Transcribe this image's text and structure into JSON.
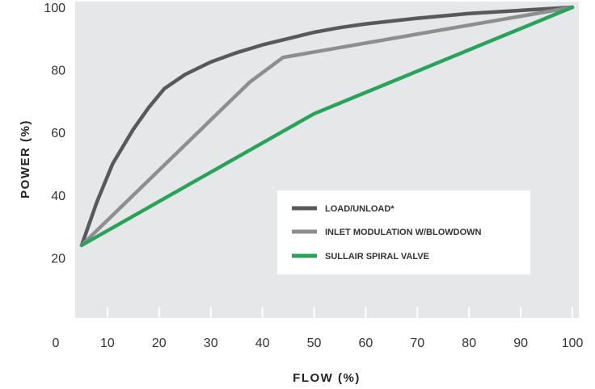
{
  "chart_data": {
    "type": "line",
    "xlabel": "FLOW (%)",
    "ylabel": "POWER (%)",
    "xlim": [
      0,
      100
    ],
    "ylim": [
      0,
      100
    ],
    "x_ticks": [
      "0",
      "10",
      "20",
      "30",
      "40",
      "50",
      "60",
      "70",
      "80",
      "90",
      "100"
    ],
    "y_ticks": [
      "20",
      "40",
      "60",
      "80",
      "100"
    ],
    "grid": false,
    "legend_position": "center-right",
    "colors": {
      "plot_background": "#e6e7e8",
      "tick_marks": "#ffffff"
    },
    "series": [
      {
        "name": "LOAD/UNLOAD*",
        "color": "#58595b",
        "x": [
          5,
          8,
          11,
          15,
          18,
          21,
          25,
          30,
          35,
          40,
          45,
          50,
          55,
          60,
          70,
          80,
          90,
          100
        ],
        "y": [
          24,
          38,
          50,
          61,
          68,
          74,
          78.5,
          82.5,
          85.5,
          88,
          90,
          92,
          93.5,
          94.7,
          96.5,
          98,
          99,
          100
        ]
      },
      {
        "name": "INLET MODULATION W/BLOWDOWN",
        "color": "#8d8e90",
        "x": [
          5,
          37.5,
          44,
          100
        ],
        "y": [
          24,
          76,
          84,
          100
        ]
      },
      {
        "name": "SULLAIR SPIRAL VALVE",
        "color": "#27a35a",
        "x": [
          5,
          50,
          100
        ],
        "y": [
          24,
          66,
          100
        ]
      }
    ]
  }
}
